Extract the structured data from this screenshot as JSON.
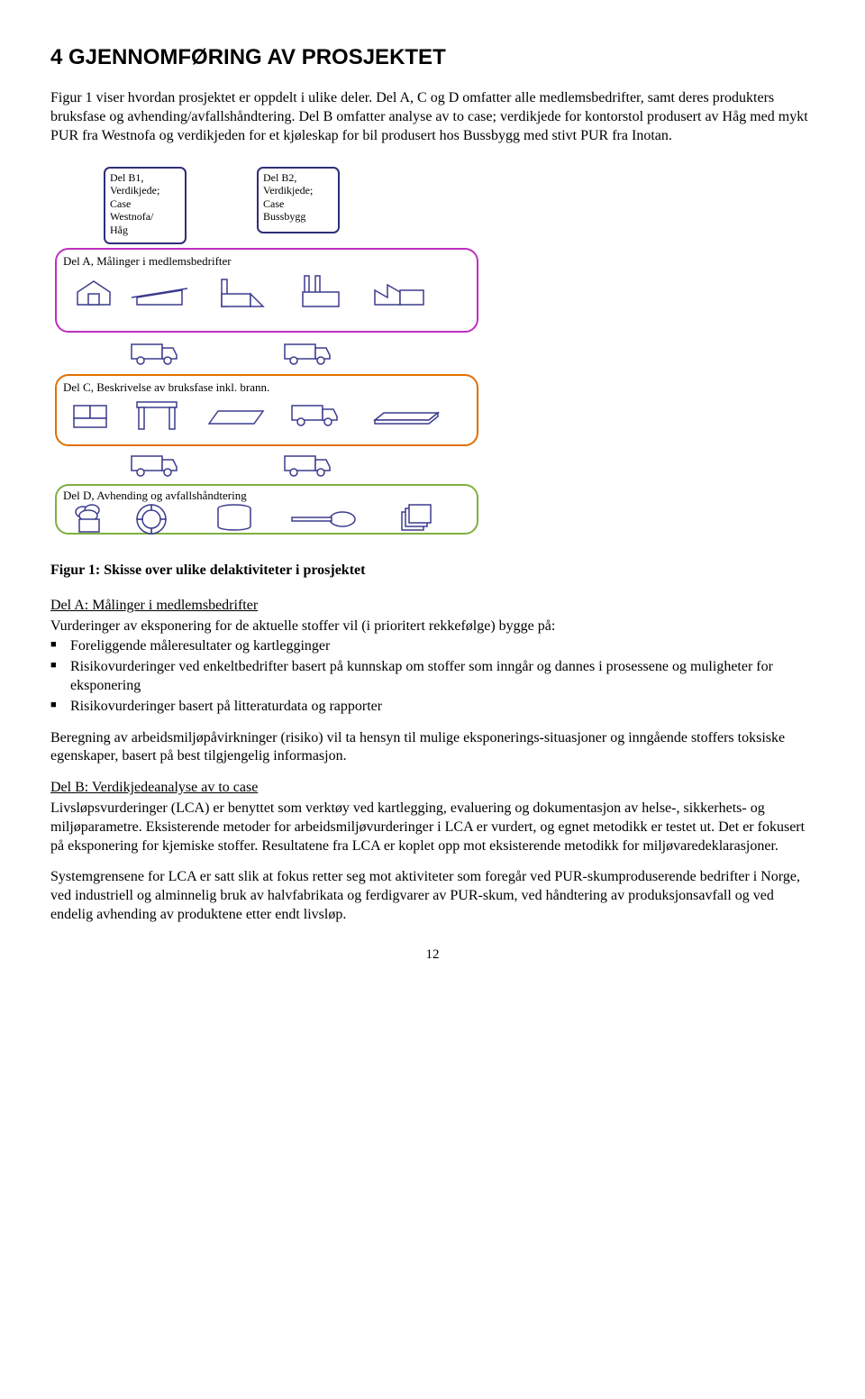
{
  "heading": "4  GJENNOMFØRING AV PROSJEKTET",
  "para1": "Figur 1 viser hvordan prosjektet er oppdelt i ulike deler. Del A, C og D omfatter alle medlemsbedrifter, samt deres produkters bruksfase og avhending/avfallshåndtering. Del B omfatter analyse av to case; verdikjede for kontorstol produsert av Håg med mykt PUR fra Westnofa og verdikjeden for et kjøleskap for bil produsert hos Bussbygg med stivt PUR fra Inotan.",
  "diagram": {
    "topleft": "Del B1,\nVerdikjede;\nCase\nWestnofa/\nHåg",
    "topright": "Del B2,\nVerdikjede;\nCase\nBussbygg",
    "delA": "Del A, Målinger i medlemsbedrifter",
    "delC": "Del C, Beskrivelse av bruksfase inkl. brann.",
    "delD": "Del D, Avhending og avfallshåndtering",
    "colors": {
      "boxBorder": "#2e2e7a",
      "delAborder": "#c02fc0",
      "delCborder": "#e07000",
      "delDborder": "#7fb040",
      "iconStroke": "#3b3b8e",
      "iconFill": "#ffffff"
    }
  },
  "figcaption": "Figur 1: Skisse over ulike delaktiviteter i prosjektet",
  "delAsection": {
    "title": "Del A: Målinger i medlemsbedrifter",
    "lead": "Vurderinger av eksponering for de aktuelle stoffer vil (i prioritert rekkefølge) bygge på:",
    "bullets": [
      "Foreliggende måleresultater og kartlegginger",
      "Risikovurderinger ved enkeltbedrifter basert på kunnskap om stoffer som inngår og dannes i prosessene og muligheter for eksponering",
      "Risikovurderinger basert på litteraturdata og rapporter"
    ],
    "tail": "Beregning av arbeidsmiljøpåvirkninger (risiko) vil ta hensyn til mulige eksponerings-situasjoner og inngående stoffers toksiske egenskaper, basert på best tilgjengelig informasjon."
  },
  "delBsection": {
    "title": "Del B: Verdikjedeanalyse av to case",
    "p1": "Livsløpsvurderinger (LCA) er benyttet som verktøy ved kartlegging, evaluering og dokumentasjon av helse-, sikkerhets- og miljøparametre. Eksisterende metoder for arbeidsmiljøvurderinger i LCA er vurdert, og egnet metodikk er testet ut. Det er fokusert på eksponering for kjemiske stoffer. Resultatene fra LCA er koplet opp mot eksisterende metodikk for miljøvaredeklarasjoner.",
    "p2": "Systemgrensene for LCA er satt slik at fokus retter seg mot aktiviteter som foregår ved PUR-skumproduserende bedrifter i Norge, ved industriell og alminnelig bruk av halvfabrikata og ferdigvarer av PUR-skum, ved håndtering av produksjonsavfall og ved endelig avhending av produktene etter endt livsløp."
  },
  "pagenum": "12"
}
